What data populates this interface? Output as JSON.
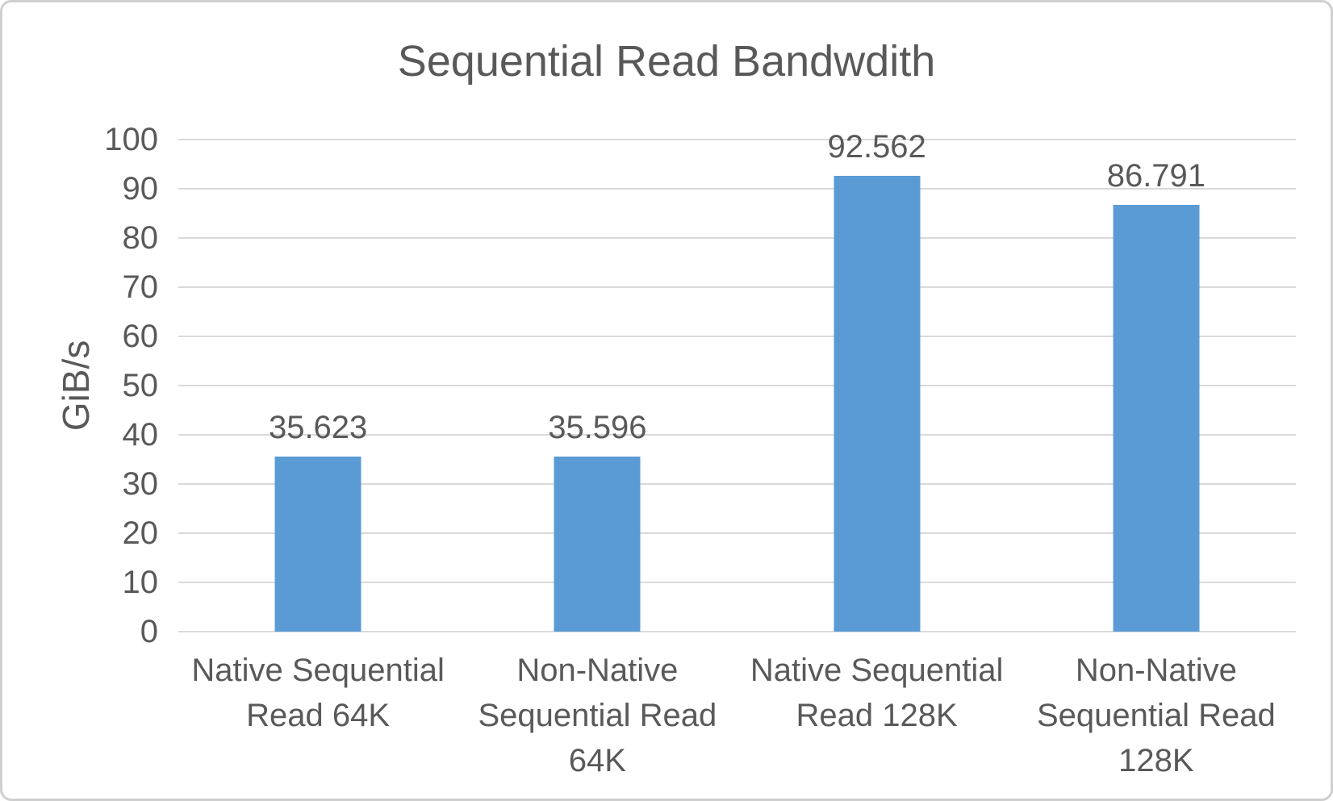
{
  "chart_data": {
    "type": "bar",
    "title": "Sequential Read Bandwdith",
    "categories": [
      "Native Sequential Read 64K",
      "Non-Native Sequential Read 64K",
      "Native Sequential Read 128K",
      "Non-Native Sequential Read 128K"
    ],
    "values": [
      35.623,
      35.596,
      92.562,
      86.791
    ],
    "data_labels": [
      "35.623",
      "35.596",
      "92.562",
      "86.791"
    ],
    "xlabel": "",
    "ylabel": "GiB/s",
    "ylim": [
      0,
      100
    ],
    "yticks": [
      0,
      10,
      20,
      30,
      40,
      50,
      60,
      70,
      80,
      90,
      100
    ],
    "grid": true,
    "legend": false,
    "colors": {
      "bar": "#5B9BD5",
      "text": "#595959",
      "gridline": "#D9D9D9",
      "background": "#FFFFFF",
      "border": "#CFCFCF"
    }
  }
}
